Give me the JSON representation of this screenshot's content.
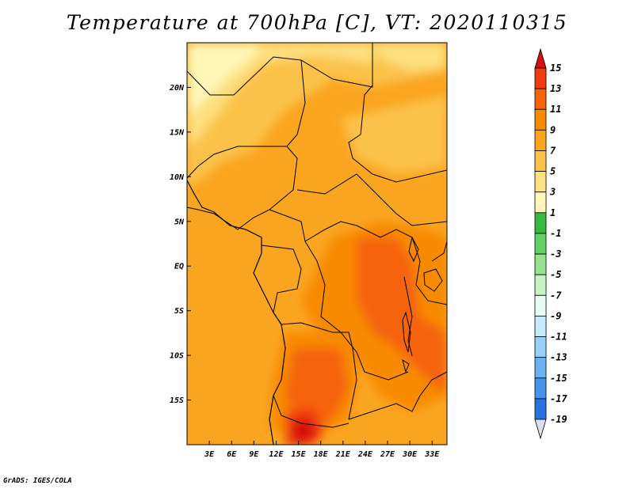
{
  "title": "Temperature at 700hPa [C], VT: 2020110315",
  "footer": "GrADS: IGES/COLA",
  "map": {
    "lon_range": [
      0,
      35
    ],
    "lat_range": [
      -20,
      25
    ],
    "lon_ticks": [
      "3E",
      "6E",
      "9E",
      "12E",
      "15E",
      "18E",
      "21E",
      "24E",
      "27E",
      "30E",
      "33E"
    ],
    "lon_tick_values": [
      3,
      6,
      9,
      12,
      15,
      18,
      21,
      24,
      27,
      30,
      33
    ],
    "lat_ticks": [
      "20N",
      "15N",
      "10N",
      "5N",
      "EQ",
      "5S",
      "10S",
      "15S"
    ],
    "lat_tick_values": [
      20,
      15,
      10,
      5,
      0,
      -5,
      -10,
      -15
    ]
  },
  "colorbar": {
    "labels": [
      "15",
      "13",
      "11",
      "9",
      "7",
      "5",
      "3",
      "1",
      "-1",
      "-3",
      "-5",
      "-7",
      "-9",
      "-11",
      "-13",
      "-15",
      "-17",
      "-19"
    ],
    "colors": [
      "#f03a10",
      "#f56408",
      "#f88a00",
      "#faa520",
      "#fbc24a",
      "#fde07f",
      "#fff6b7",
      "#37b840",
      "#64d168",
      "#96e28f",
      "#c8f2c3",
      "#e9fbf5",
      "#c4eafb",
      "#96d0f8",
      "#6cb2f2",
      "#4693ea",
      "#2673dd",
      "#1650c8",
      "#0d2d9a",
      "#0a156a"
    ],
    "top_color": "#d41010",
    "bottom_color": "#dcdcf4"
  }
}
